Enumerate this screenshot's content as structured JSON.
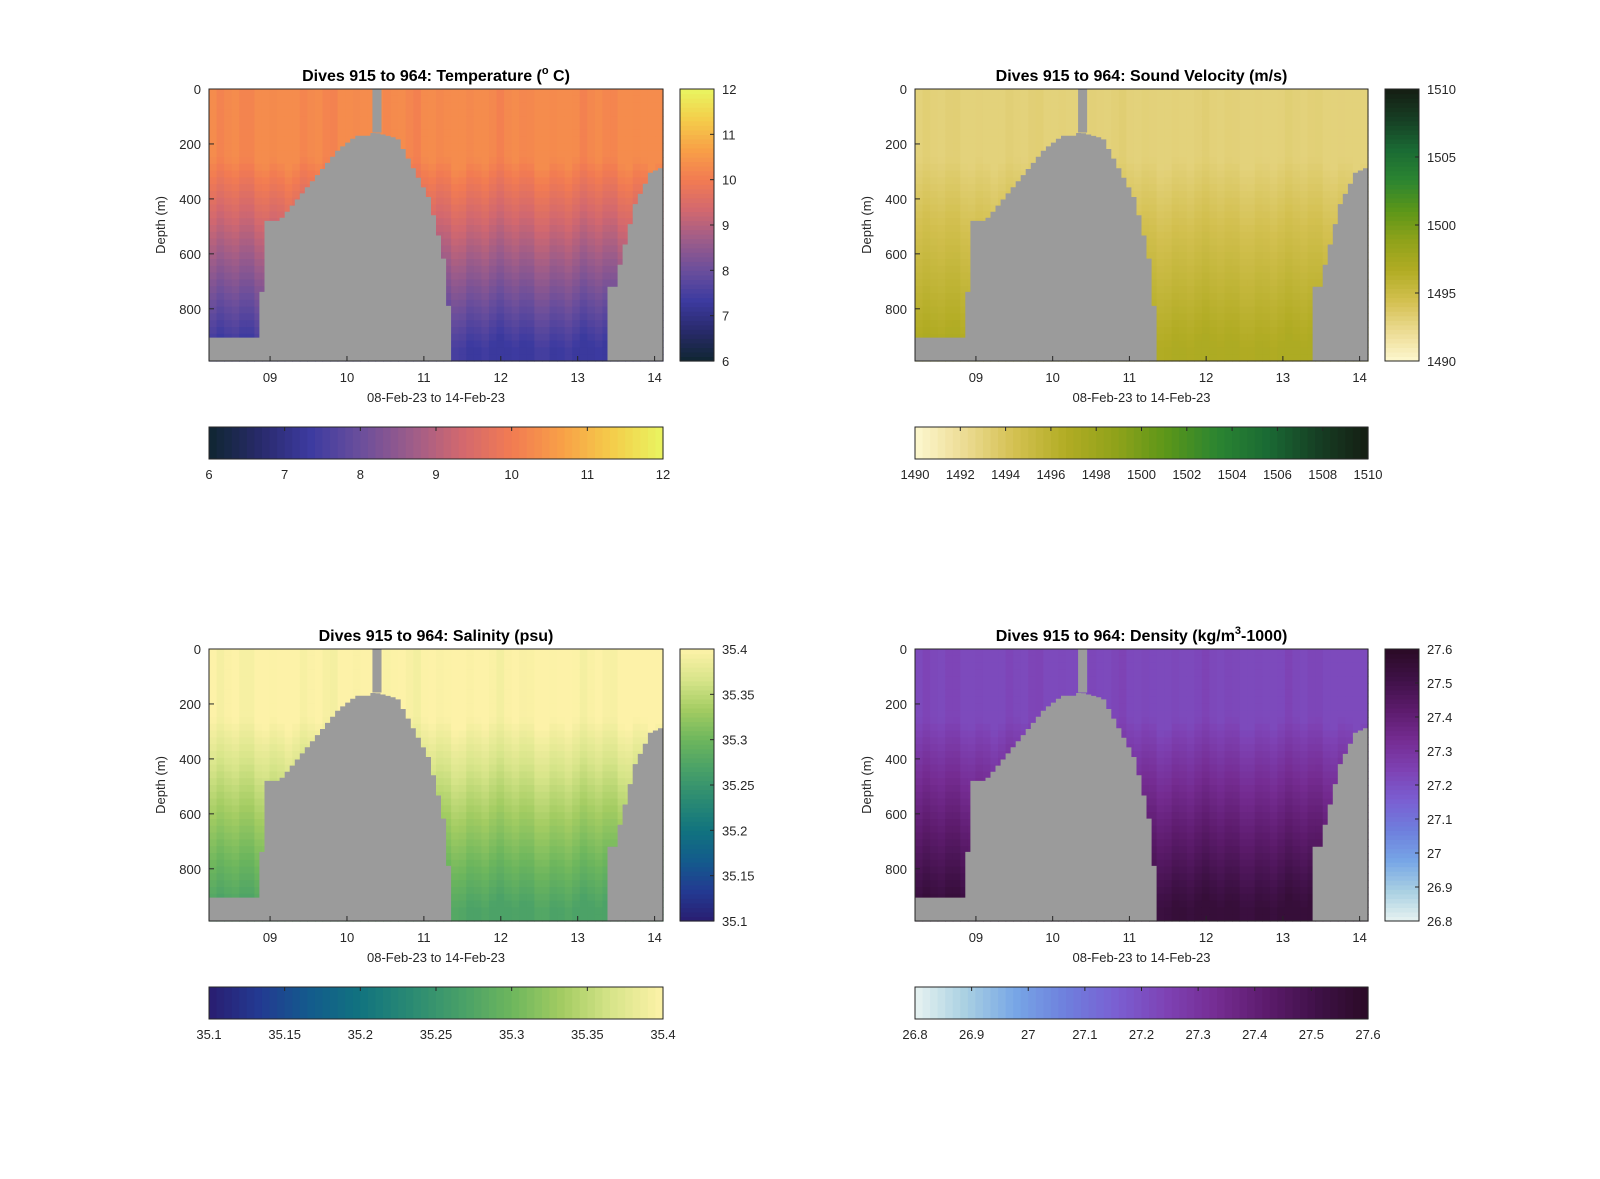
{
  "figure": {
    "panels": [
      {
        "title": "Dives 915 to 964: Temperature (",
        "title_sup": "o",
        "title_tail": " C)",
        "xlabel": "08-Feb-23 to 14-Feb-23",
        "ylabel": "Depth (m)",
        "colormap": [
          "#0f2631",
          "#282a6a",
          "#3c3aa0",
          "#6a4e9c",
          "#9c5c8a",
          "#d2686f",
          "#f27b52",
          "#f8a047",
          "#f4cd4a",
          "#e9f561"
        ],
        "colorbar_ticks": [
          "6",
          "7",
          "8",
          "9",
          "10",
          "11",
          "12"
        ],
        "horizontal_colorbar_ticks": [
          "6",
          "7",
          "8",
          "9",
          "10",
          "11",
          "12"
        ]
      },
      {
        "title": "Dives 915 to 964: Sound Velocity (m/s)",
        "xlabel": "08-Feb-23 to 14-Feb-23",
        "ylabel": "Depth (m)",
        "colormap": [
          "#fdf8d0",
          "#ecdb92",
          "#d3c050",
          "#b2ac24",
          "#8fa21a",
          "#5b9619",
          "#2b8531",
          "#1a6a34",
          "#163f24",
          "#151e13"
        ],
        "colorbar_ticks": [
          "1490",
          "1495",
          "1500",
          "1505",
          "1510"
        ],
        "horizontal_colorbar_ticks": [
          "1490",
          "1492",
          "1494",
          "1496",
          "1498",
          "1500",
          "1502",
          "1504",
          "1506",
          "1508",
          "1510"
        ]
      },
      {
        "title": "Dives 915 to 964: Salinity (psu)",
        "xlabel": "08-Feb-23 to 14-Feb-23",
        "ylabel": "Depth (m)",
        "colormap": [
          "#2a1d70",
          "#233a92",
          "#135b8c",
          "#11737f",
          "#2a8a73",
          "#48a068",
          "#6db65d",
          "#a3cc62",
          "#d8e58a",
          "#fdf2a8"
        ],
        "colorbar_ticks": [
          "35.1",
          "35.15",
          "35.2",
          "35.25",
          "35.3",
          "35.35",
          "35.4"
        ],
        "horizontal_colorbar_ticks": [
          "35.1",
          "35.15",
          "35.2",
          "35.25",
          "35.3",
          "35.35",
          "35.4"
        ]
      },
      {
        "title": "Dives 915 to 964: Density (kg/m",
        "title_sup": "3",
        "title_tail": "-1000)",
        "xlabel": "08-Feb-23 to 14-Feb-23",
        "ylabel": "Depth (m)",
        "colormap": [
          "#e8f3f1",
          "#a9d0e2",
          "#77a6e6",
          "#6e7fdd",
          "#7a5fd2",
          "#7e42b4",
          "#752c92",
          "#5c1b6c",
          "#3f1147",
          "#2a0a26"
        ],
        "colorbar_ticks": [
          "26.8",
          "26.9",
          "27",
          "27.1",
          "27.2",
          "27.3",
          "27.4",
          "27.5",
          "27.6"
        ],
        "horizontal_colorbar_ticks": [
          "26.8",
          "26.9",
          "27",
          "27.1",
          "27.2",
          "27.3",
          "27.4",
          "27.5",
          "27.6"
        ]
      }
    ]
  },
  "chart_data": [
    {
      "type": "heatmap",
      "title": "Dives 915 to 964: Temperature (° C)",
      "xlabel": "08-Feb-23 to 14-Feb-23",
      "ylabel": "Depth (m)",
      "x_tick_labels": [
        "09",
        "10",
        "11",
        "12",
        "13",
        "14"
      ],
      "y_tick_labels": [
        "0",
        "200",
        "400",
        "600",
        "800"
      ],
      "xlim": [
        "2023-02-08T05:00",
        "2023-02-14T03:00"
      ],
      "ylim": [
        0,
        990
      ],
      "y_reversed": true,
      "clim": [
        6,
        12
      ],
      "colorbar_ticks": [
        6,
        7,
        8,
        9,
        10,
        11,
        12
      ],
      "surface_value": 10.3,
      "deep_value": 7.3,
      "mask_color": "#9b9b9b"
    },
    {
      "type": "heatmap",
      "title": "Dives 915 to 964: Sound Velocity (m/s)",
      "xlabel": "08-Feb-23 to 14-Feb-23",
      "ylabel": "Depth (m)",
      "x_tick_labels": [
        "09",
        "10",
        "11",
        "12",
        "13",
        "14"
      ],
      "y_tick_labels": [
        "0",
        "200",
        "400",
        "600",
        "800"
      ],
      "xlim": [
        "2023-02-08T05:00",
        "2023-02-14T03:00"
      ],
      "ylim": [
        0,
        990
      ],
      "y_reversed": true,
      "clim": [
        1490,
        1510
      ],
      "colorbar_ticks": [
        1490,
        1495,
        1500,
        1505,
        1510
      ],
      "surface_value": 1493,
      "deep_value": 1497,
      "mask_color": "#9b9b9b"
    },
    {
      "type": "heatmap",
      "title": "Dives 915 to 964: Salinity (psu)",
      "xlabel": "08-Feb-23 to 14-Feb-23",
      "ylabel": "Depth (m)",
      "x_tick_labels": [
        "09",
        "10",
        "11",
        "12",
        "13",
        "14"
      ],
      "y_tick_labels": [
        "0",
        "200",
        "400",
        "600",
        "800"
      ],
      "xlim": [
        "2023-02-08T05:00",
        "2023-02-14T03:00"
      ],
      "ylim": [
        0,
        990
      ],
      "y_reversed": true,
      "clim": [
        35.1,
        35.4
      ],
      "colorbar_ticks": [
        35.1,
        35.15,
        35.2,
        35.25,
        35.3,
        35.35,
        35.4
      ],
      "surface_value": 35.4,
      "deep_value": 35.27,
      "mask_color": "#9b9b9b"
    },
    {
      "type": "heatmap",
      "title": "Dives 915 to 964: Density (kg/m³-1000)",
      "xlabel": "08-Feb-23 to 14-Feb-23",
      "ylabel": "Depth (m)",
      "x_tick_labels": [
        "09",
        "10",
        "11",
        "12",
        "13",
        "14"
      ],
      "y_tick_labels": [
        "0",
        "200",
        "400",
        "600",
        "800"
      ],
      "xlim": [
        "2023-02-08T05:00",
        "2023-02-14T03:00"
      ],
      "ylim": [
        0,
        990
      ],
      "y_reversed": true,
      "clim": [
        26.8,
        27.6
      ],
      "colorbar_ticks": [
        26.8,
        26.9,
        27,
        27.1,
        27.2,
        27.3,
        27.4,
        27.5,
        27.6
      ],
      "surface_value": 27.22,
      "deep_value": 27.55,
      "mask_color": "#9b9b9b"
    }
  ]
}
